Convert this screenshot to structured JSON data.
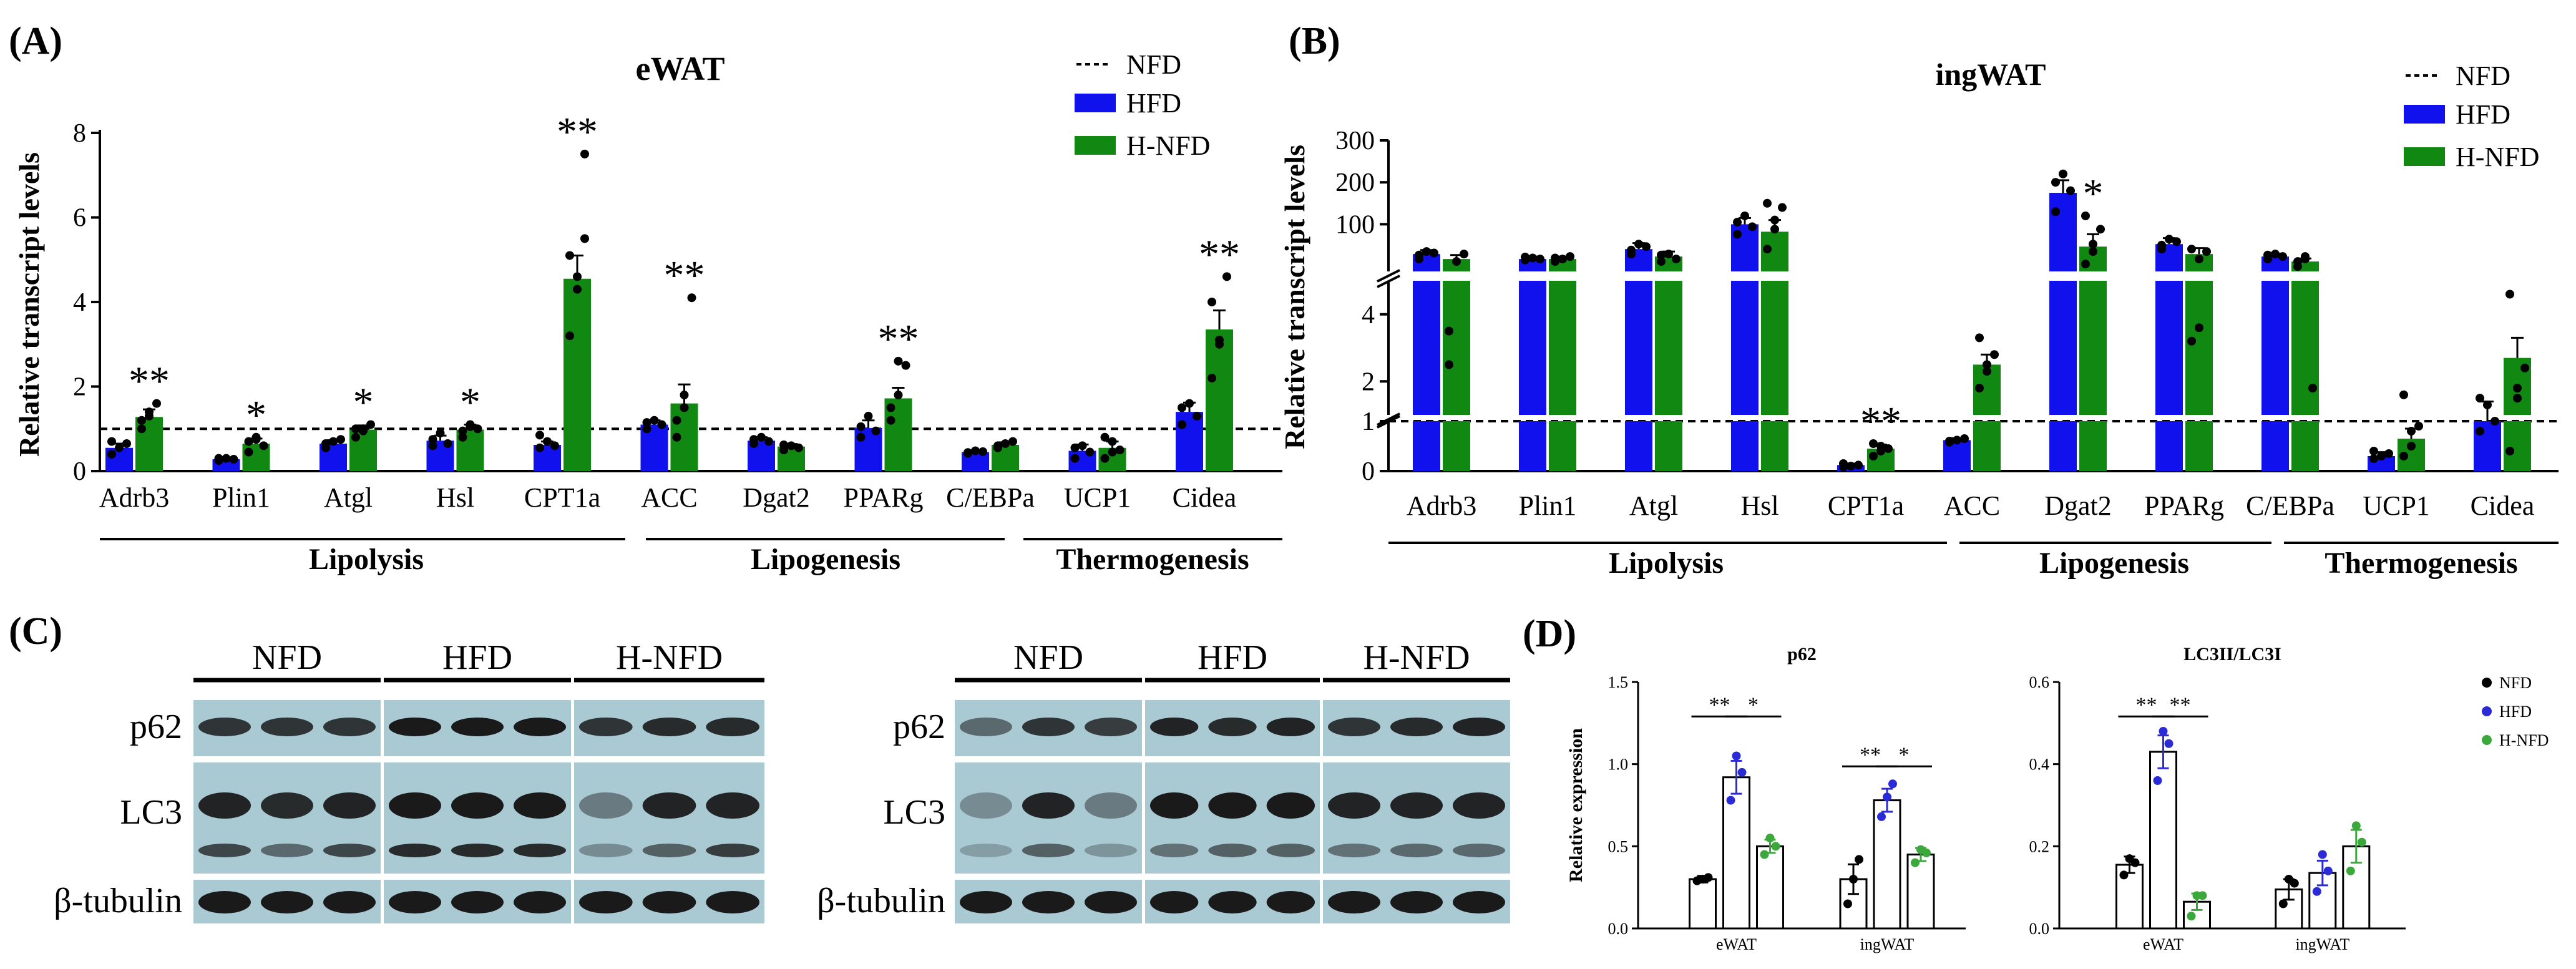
{
  "chart_data": [
    {
      "id": "A",
      "panel_label": "(A)",
      "type": "bar",
      "title": "eWAT",
      "ylabel": "Relative transcript levels",
      "ylim": [
        0,
        8
      ],
      "yticks": [
        "0",
        "2",
        "4",
        "6",
        "8"
      ],
      "baseline_value": 1,
      "categories": [
        "Adrb3",
        "Plin1",
        "Atgl",
        "Hsl",
        "CPT1a",
        "ACC",
        "Dgat2",
        "PPARg",
        "C/EBPa",
        "UCP1",
        "Cidea"
      ],
      "series": [
        {
          "name": "HFD",
          "values": [
            0.55,
            0.28,
            0.65,
            0.72,
            0.62,
            1.1,
            0.72,
            1.02,
            0.45,
            0.48,
            1.4
          ]
        },
        {
          "name": "H-NFD",
          "values": [
            1.28,
            0.65,
            0.98,
            0.98,
            4.55,
            1.6,
            0.58,
            1.72,
            0.62,
            0.55,
            3.35
          ]
        }
      ],
      "errors": [
        {
          "name": "HFD",
          "values": [
            0.1,
            0.04,
            0.08,
            0.12,
            0.08,
            0.1,
            0.08,
            0.18,
            0.04,
            0.15,
            0.22
          ]
        },
        {
          "name": "H-NFD",
          "values": [
            0.18,
            0.12,
            0.1,
            0.12,
            0.55,
            0.45,
            0.06,
            0.25,
            0.06,
            0.15,
            0.45
          ]
        }
      ],
      "points": [
        {
          "name": "HFD",
          "values": [
            [
              0.4,
              0.55,
              0.65,
              0.7
            ],
            [
              0.25,
              0.3,
              0.28,
              0.3
            ],
            [
              0.55,
              0.7,
              0.75,
              0.65
            ],
            [
              0.6,
              0.9,
              0.65,
              0.75
            ],
            [
              0.55,
              0.7,
              0.6,
              0.85
            ],
            [
              1.0,
              1.2,
              1.1,
              1.15
            ],
            [
              0.65,
              0.8,
              0.7,
              0.75
            ],
            [
              0.8,
              1.3,
              0.95,
              1.05
            ],
            [
              0.42,
              0.48,
              0.46,
              0.44
            ],
            [
              0.3,
              0.6,
              0.45,
              0.55
            ],
            [
              1.1,
              1.6,
              1.3,
              1.5
            ]
          ]
        },
        {
          "name": "H-NFD",
          "values": [
            [
              1.0,
              1.3,
              1.6,
              1.2,
              1.4
            ],
            [
              0.45,
              0.8,
              0.6,
              0.7,
              0.75
            ],
            [
              0.8,
              1.0,
              1.1,
              1.0,
              0.95
            ],
            [
              0.8,
              1.1,
              1.0,
              0.95,
              1.05
            ],
            [
              3.2,
              4.6,
              5.5,
              5.1,
              4.3,
              7.5
            ],
            [
              0.8,
              1.5,
              4.1,
              1.2,
              1.8
            ],
            [
              0.5,
              0.6,
              0.55,
              0.62
            ],
            [
              1.2,
              1.8,
              2.5,
              1.5,
              2.6
            ],
            [
              0.55,
              0.65,
              0.7,
              0.6
            ],
            [
              0.3,
              0.7,
              0.5,
              0.8,
              0.45
            ],
            [
              2.2,
              3.0,
              4.6,
              4.0,
              3.1
            ]
          ]
        }
      ],
      "significance": [
        "**",
        "*",
        "*",
        "*",
        "**",
        "**",
        "",
        "**",
        "",
        "",
        "**"
      ],
      "groups": [
        "Lipolysis",
        "Lipogenesis",
        "Thermogenesis"
      ],
      "legend": [
        "NFD",
        "HFD",
        "H-NFD"
      ]
    },
    {
      "id": "B",
      "panel_label": "(B)",
      "type": "bar",
      "title": "ingWAT",
      "ylabel": "Relative transcript levels",
      "axis_note": "broken y-axis with three segments",
      "y_segments": [
        [
          0,
          1
        ],
        [
          1,
          5
        ],
        [
          5,
          300
        ]
      ],
      "yticks": [
        "0",
        "1",
        "2",
        "4",
        "100",
        "200",
        "300"
      ],
      "baseline_value": 1,
      "categories": [
        "Adrb3",
        "Plin1",
        "Atgl",
        "Hsl",
        "CPT1a",
        "ACC",
        "Dgat2",
        "PPARg",
        "C/EBPa",
        "UCP1",
        "Cidea"
      ],
      "series": [
        {
          "name": "HFD",
          "values": [
            40,
            30,
            50,
            100,
            0.12,
            0.62,
            175,
            60,
            35,
            0.3,
            1.0
          ]
        },
        {
          "name": "H-NFD",
          "values": [
            30,
            30,
            35,
            85,
            0.45,
            2.5,
            55,
            40,
            25,
            0.65,
            2.7
          ]
        }
      ],
      "errors": [
        {
          "name": "HFD",
          "values": [
            8,
            5,
            12,
            15,
            0.03,
            0.04,
            30,
            12,
            6,
            0.08,
            0.4
          ]
        },
        {
          "name": "H-NFD",
          "values": [
            8,
            5,
            10,
            25,
            0.08,
            0.3,
            25,
            12,
            6,
            0.2,
            0.6
          ]
        }
      ],
      "points": [
        {
          "name": "HFD",
          "values": [
            [
              30,
              45,
              42,
              38
            ],
            [
              28,
              32,
              30,
              34
            ],
            [
              40,
              60,
              55,
              48
            ],
            [
              80,
              120,
              95,
              105
            ],
            [
              0.08,
              0.1,
              0.12,
              0.15
            ],
            [
              0.6,
              0.62,
              0.65,
              0.58
            ],
            [
              130,
              220,
              180,
              200
            ],
            [
              50,
              70,
              65,
              58
            ],
            [
              30,
              40,
              35,
              38
            ],
            [
              0.25,
              0.3,
              0.35,
              0.4
            ],
            [
              0.8,
              1.3,
              1.0,
              1.5
            ]
          ]
        },
        {
          "name": "H-NFD",
          "values": [
            [
              3.5,
              25,
              40,
              2.5
            ],
            [
              25,
              30,
              35,
              32
            ],
            [
              25,
              40,
              30,
              38
            ],
            [
              50,
              90,
              140,
              150,
              110
            ],
            [
              0.3,
              0.5,
              0.45,
              0.55,
              0.4
            ],
            [
              1.8,
              2.5,
              2.8,
              3.3,
              2.3
            ],
            [
              20,
              60,
              90,
              120,
              45
            ],
            [
              3.2,
              30,
              45,
              50,
              3.6
            ],
            [
              15,
              30,
              1.8,
              25,
              35
            ],
            [
              0.3,
              0.8,
              0.9,
              1.6,
              0.5
            ],
            [
              0.4,
              1.5,
              2.4,
              4.6,
              1.8
            ]
          ]
        }
      ],
      "significance": [
        "",
        "",
        "",
        "",
        "**",
        "",
        "*",
        "",
        "",
        "",
        ""
      ],
      "groups": [
        "Lipolysis",
        "Lipogenesis",
        "Thermogenesis"
      ],
      "legend": [
        "NFD",
        "HFD",
        "H-NFD"
      ]
    },
    {
      "id": "D1",
      "panel_label": "(D)",
      "type": "bar",
      "title": "p62",
      "ylabel": "Relative expression",
      "ylim": [
        0,
        1.5
      ],
      "yticks": [
        "0.0",
        "0.5",
        "1.0",
        "1.5"
      ],
      "categories": [
        "eWAT",
        "ingWAT"
      ],
      "series": [
        {
          "name": "NFD",
          "values": [
            0.3,
            0.3
          ]
        },
        {
          "name": "HFD",
          "values": [
            0.92,
            0.78
          ]
        },
        {
          "name": "H-NFD",
          "values": [
            0.5,
            0.45
          ]
        }
      ],
      "errors": [
        {
          "name": "NFD",
          "values": [
            0.02,
            0.09
          ]
        },
        {
          "name": "HFD",
          "values": [
            0.1,
            0.07
          ]
        },
        {
          "name": "H-NFD",
          "values": [
            0.04,
            0.04
          ]
        }
      ],
      "points": [
        {
          "name": "NFD",
          "values": [
            [
              0.29,
              0.3,
              0.31
            ],
            [
              0.15,
              0.3,
              0.42
            ]
          ]
        },
        {
          "name": "HFD",
          "values": [
            [
              0.78,
              1.05,
              0.95
            ],
            [
              0.68,
              0.8,
              0.88
            ]
          ]
        },
        {
          "name": "H-NFD",
          "values": [
            [
              0.45,
              0.55,
              0.5
            ],
            [
              0.4,
              0.48,
              0.46
            ]
          ]
        }
      ],
      "comparisons": [
        {
          "group": 0,
          "from": 0,
          "to": 1,
          "label": "**"
        },
        {
          "group": 0,
          "from": 1,
          "to": 2,
          "label": "*"
        },
        {
          "group": 1,
          "from": 0,
          "to": 1,
          "label": "**"
        },
        {
          "group": 1,
          "from": 1,
          "to": 2,
          "label": "*"
        }
      ]
    },
    {
      "id": "D2",
      "panel_label": "",
      "type": "bar",
      "title": "LC3II/LC3I",
      "ylabel": "",
      "ylim": [
        0,
        0.6
      ],
      "yticks": [
        "0.0",
        "0.2",
        "0.4",
        "0.6"
      ],
      "categories": [
        "eWAT",
        "ingWAT"
      ],
      "series": [
        {
          "name": "NFD",
          "values": [
            0.155,
            0.095
          ]
        },
        {
          "name": "HFD",
          "values": [
            0.43,
            0.135
          ]
        },
        {
          "name": "H-NFD",
          "values": [
            0.065,
            0.2
          ]
        }
      ],
      "errors": [
        {
          "name": "NFD",
          "values": [
            0.02,
            0.025
          ]
        },
        {
          "name": "HFD",
          "values": [
            0.04,
            0.03
          ]
        },
        {
          "name": "H-NFD",
          "values": [
            0.02,
            0.04
          ]
        }
      ],
      "points": [
        {
          "name": "NFD",
          "values": [
            [
              0.13,
              0.17,
              0.16
            ],
            [
              0.06,
              0.12,
              0.11
            ]
          ]
        },
        {
          "name": "HFD",
          "values": [
            [
              0.36,
              0.48,
              0.45
            ],
            [
              0.09,
              0.18,
              0.14
            ]
          ]
        },
        {
          "name": "H-NFD",
          "values": [
            [
              0.03,
              0.08,
              0.08
            ],
            [
              0.14,
              0.25,
              0.21
            ]
          ]
        }
      ],
      "comparisons": [
        {
          "group": 0,
          "from": 0,
          "to": 1,
          "label": "**"
        },
        {
          "group": 0,
          "from": 1,
          "to": 2,
          "label": "**"
        }
      ],
      "legend": [
        "NFD",
        "HFD",
        "H-NFD"
      ]
    }
  ],
  "blots": {
    "panel_label": "(C)",
    "left": {
      "groups": [
        "NFD",
        "HFD",
        "H-NFD"
      ],
      "rows": [
        "p62",
        "LC3",
        "β-tubulin"
      ]
    },
    "right": {
      "groups": [
        "NFD",
        "HFD",
        "H-NFD"
      ],
      "rows": [
        "p62",
        "LC3",
        "β-tubulin"
      ]
    }
  },
  "colors": {
    "HFD": "#1111ee",
    "H-NFD": "#118811",
    "NFD": "#000000",
    "HFD_dot": "#2a2ad6",
    "H-NFD_dot": "#3aa83a",
    "blot_bg": "#a9c9d3",
    "band": "#1a1a1a"
  }
}
